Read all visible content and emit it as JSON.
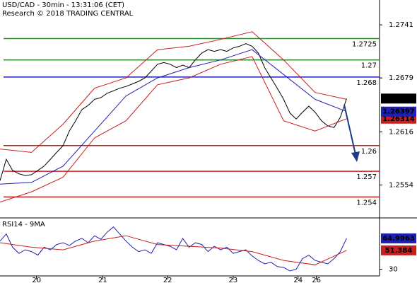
{
  "chart_data": [
    {
      "type": "line",
      "title": "USD/CAD - 30min - 13:31:06 (CET)",
      "subtitle": "Research © 2018 TRADING CENTRAL",
      "xlim": [
        0,
        60
      ],
      "ylim": [
        1.2518,
        1.277
      ],
      "yticks": [
        1.2741,
        1.2679,
        1.2616,
        1.2554
      ],
      "levels": [
        {
          "value": 1.2725,
          "color": "#2e8b2e"
        },
        {
          "value": 1.27,
          "color": "#2e8b2e"
        },
        {
          "value": 1.268,
          "color": "#1f1fb4"
        },
        {
          "value": 1.26,
          "color": "#c81e1e"
        },
        {
          "value": 1.257,
          "color": "#c81e1e"
        },
        {
          "value": 1.254,
          "color": "#c81e1e"
        }
      ],
      "series": [
        {
          "color": "#000000",
          "flag": true,
          "x": [
            0,
            1,
            2,
            3,
            4,
            5,
            6,
            7,
            8,
            9,
            10,
            11,
            12,
            13,
            14,
            15,
            16,
            17,
            18,
            19,
            20,
            21,
            22,
            23,
            24,
            25,
            26,
            27,
            28,
            29,
            30,
            31,
            32,
            33,
            34,
            35,
            36,
            37,
            38,
            39,
            40,
            41,
            42,
            43,
            44,
            45,
            46,
            47,
            48,
            49,
            50,
            51,
            52,
            53,
            54,
            55
          ],
          "values": [
            1.2559,
            1.2584,
            1.2571,
            1.2567,
            1.2565,
            1.2566,
            1.2571,
            1.2576,
            1.2584,
            1.2592,
            1.26,
            1.2617,
            1.2629,
            1.2642,
            1.2647,
            1.2654,
            1.2656,
            1.2661,
            1.2664,
            1.2667,
            1.2669,
            1.2672,
            1.2675,
            1.2679,
            1.2687,
            1.2695,
            1.2697,
            1.2695,
            1.2691,
            1.2694,
            1.2691,
            1.27,
            1.2708,
            1.2712,
            1.271,
            1.2712,
            1.271,
            1.2714,
            1.2716,
            1.2719,
            1.2716,
            1.2708,
            1.2691,
            1.2679,
            1.2667,
            1.2654,
            1.2638,
            1.2631,
            1.2639,
            1.2646,
            1.2639,
            1.2629,
            1.2623,
            1.2621,
            1.2633,
            1.26549
          ]
        },
        {
          "color": "#c81e1e",
          "flag": false,
          "x": [
            0,
            5,
            10,
            15,
            20,
            25,
            30,
            35,
            40,
            45,
            50,
            55
          ],
          "values": [
            1.2596,
            1.2592,
            1.2625,
            1.2667,
            1.2679,
            1.2712,
            1.2716,
            1.2724,
            1.2733,
            1.27,
            1.2662,
            1.2654
          ]
        },
        {
          "color": "#c81e1e",
          "flag": true,
          "x": [
            0,
            5,
            10,
            15,
            20,
            25,
            30,
            35,
            40,
            45,
            50,
            55
          ],
          "values": [
            1.2534,
            1.2546,
            1.2563,
            1.2609,
            1.2629,
            1.2671,
            1.2679,
            1.2695,
            1.2704,
            1.2629,
            1.2617,
            1.26314
          ]
        },
        {
          "color": "#1f1fb4",
          "flag": true,
          "x": [
            0,
            5,
            10,
            15,
            20,
            25,
            30,
            35,
            40,
            45,
            50,
            55
          ],
          "values": [
            1.2555,
            1.2557,
            1.2576,
            1.2617,
            1.2658,
            1.2679,
            1.2691,
            1.27,
            1.2712,
            1.2683,
            1.2654,
            1.26397
          ]
        }
      ]
    },
    {
      "type": "line",
      "title": "RSI14 - 9MA",
      "xlim": [
        0,
        60
      ],
      "ylim": [
        24,
        85
      ],
      "yticks": [
        30
      ],
      "xticks": [
        {
          "value": 5.8,
          "label": "20"
        },
        {
          "value": 16.3,
          "label": "21"
        },
        {
          "value": 26.6,
          "label": "22"
        },
        {
          "value": 37,
          "label": "23"
        },
        {
          "value": 47.3,
          "label": "24"
        },
        {
          "value": 50.2,
          "label": "26"
        }
      ],
      "series": [
        {
          "color": "#1f1fb4",
          "flag": true,
          "x": [
            0,
            1,
            2,
            3,
            4,
            5,
            6,
            7,
            8,
            9,
            10,
            11,
            12,
            13,
            14,
            15,
            16,
            17,
            18,
            19,
            20,
            21,
            22,
            23,
            24,
            25,
            26,
            27,
            28,
            29,
            30,
            31,
            32,
            33,
            34,
            35,
            36,
            37,
            38,
            39,
            40,
            41,
            42,
            43,
            44,
            45,
            46,
            47,
            48,
            49,
            50,
            51,
            52,
            53,
            54,
            55
          ],
          "values": [
            62,
            70,
            55,
            48,
            52,
            50,
            46,
            55,
            52,
            58,
            60,
            57,
            62,
            65,
            60,
            68,
            64,
            72,
            78,
            70,
            62,
            55,
            50,
            52,
            48,
            60,
            58,
            56,
            52,
            65,
            55,
            60,
            58,
            50,
            56,
            52,
            55,
            48,
            50,
            52,
            45,
            40,
            36,
            38,
            33,
            32,
            28,
            30,
            42,
            46,
            40,
            38,
            36,
            42,
            50,
            64.9963
          ]
        },
        {
          "color": "#c81e1e",
          "flag": true,
          "x": [
            0,
            5,
            10,
            15,
            20,
            25,
            30,
            35,
            40,
            45,
            50,
            55
          ],
          "values": [
            60,
            55,
            52,
            62,
            68,
            58,
            56,
            54,
            50,
            40,
            35,
            51.384
          ]
        }
      ]
    }
  ]
}
